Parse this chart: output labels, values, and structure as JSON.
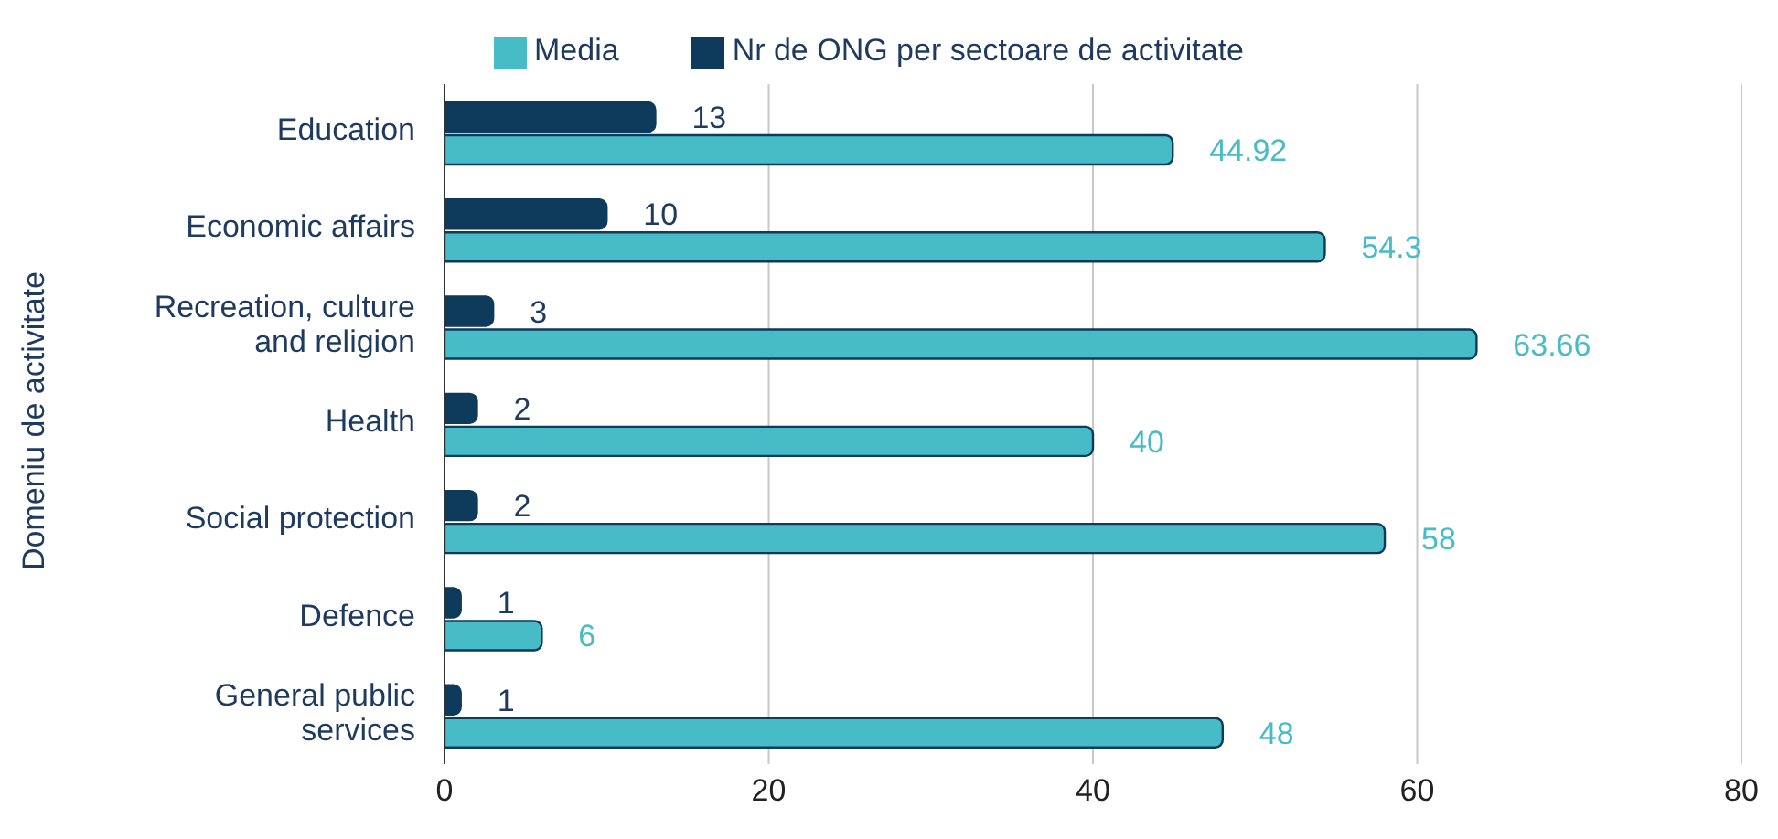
{
  "chart_data": {
    "type": "bar",
    "orientation": "horizontal",
    "ylabel": "Domeniu de activitate",
    "categories": [
      "Education",
      "Economic affairs",
      "Recreation, culture and religion",
      "Health",
      "Social protection",
      "Defence",
      "General public services"
    ],
    "series": [
      {
        "name": "Nr de ONG per sectoare de activitate",
        "color": "#0e3a5c",
        "values": [
          13,
          10,
          3,
          2,
          2,
          1,
          1
        ]
      },
      {
        "name": "Media",
        "color": "#47bcc6",
        "values": [
          44.92,
          54.3,
          63.66,
          40,
          58,
          6,
          48
        ]
      }
    ],
    "xlim": [
      0,
      80
    ],
    "xticks": [
      0,
      20,
      40,
      60,
      80
    ],
    "grid": "x",
    "legend": "top",
    "data_labels": true
  }
}
